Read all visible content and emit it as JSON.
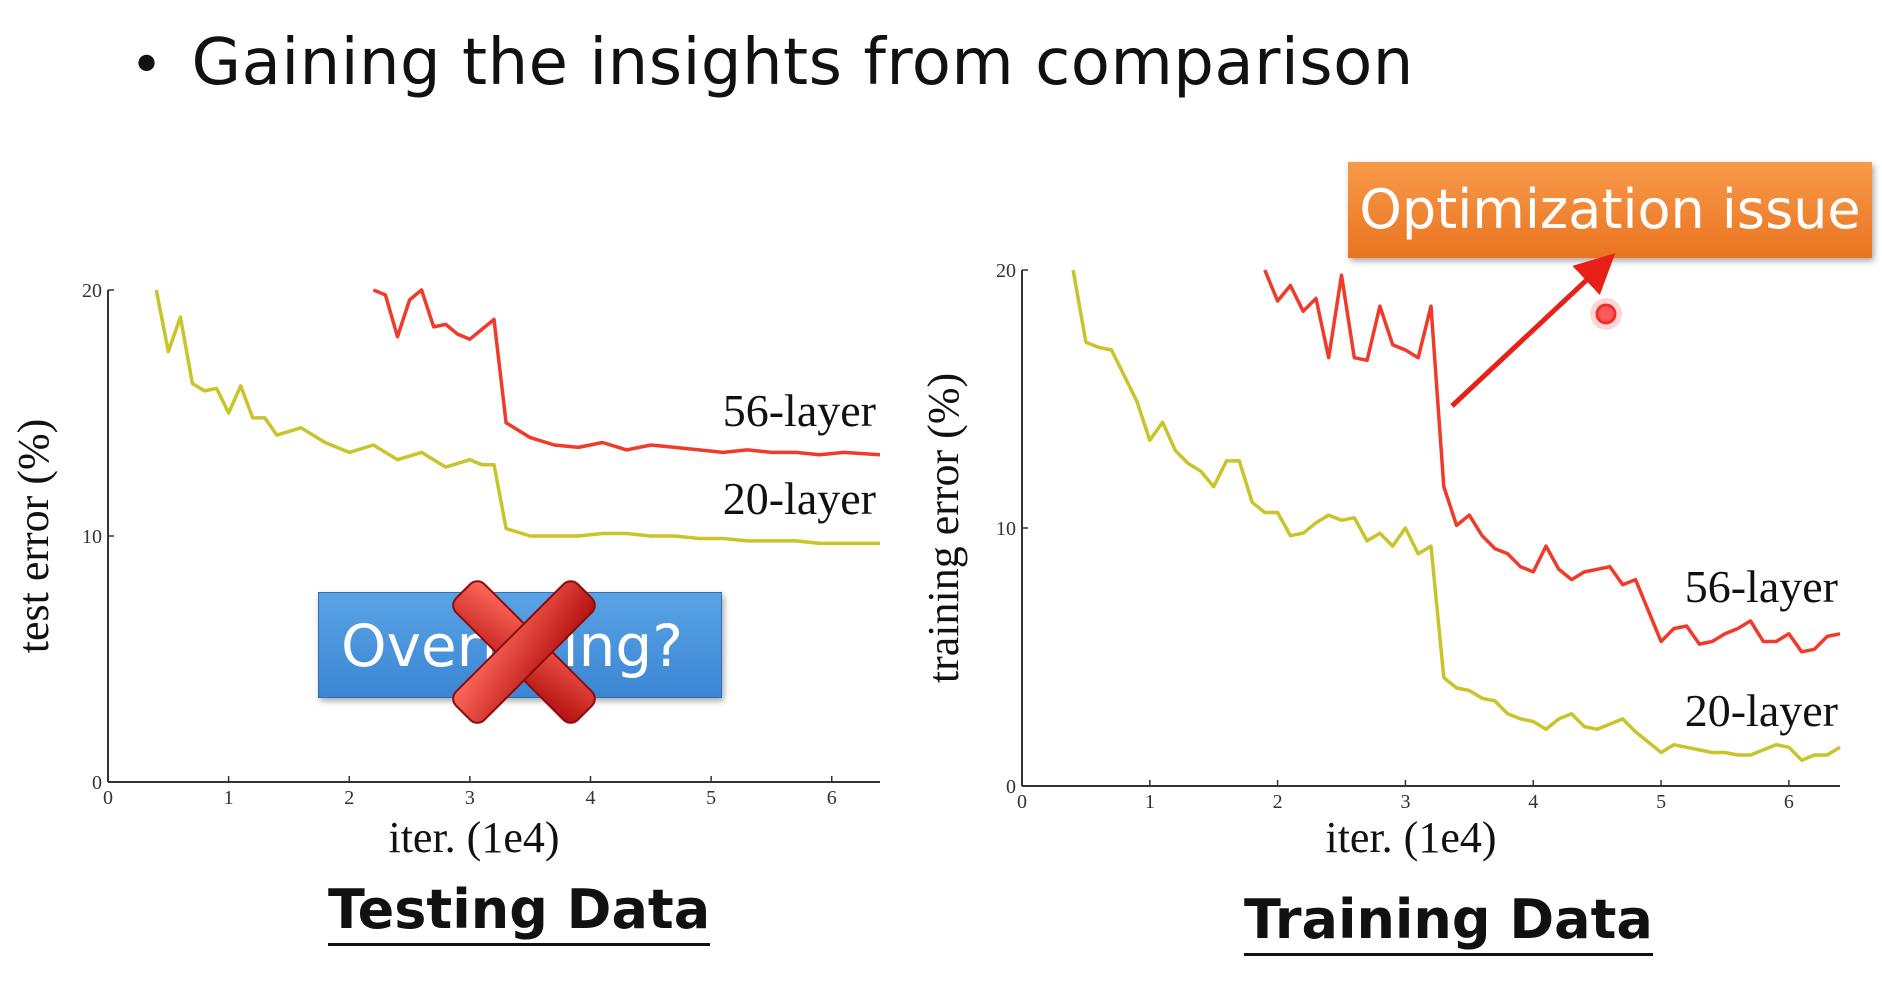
{
  "slide": {
    "bullet": "•",
    "title": "Gaining the insights from comparison"
  },
  "annotations": {
    "overfitting": "Overfitting?",
    "optimization": "Optimization issue"
  },
  "colors": {
    "layer56": "#f03a2a",
    "layer20": "#c9c42a",
    "overfit_box": "#4a95de",
    "cross": "#d91b1b",
    "opt_box": "#f08a34",
    "arrow": "#e8201a"
  },
  "chart_data": [
    {
      "type": "line",
      "caption": "Testing Data",
      "xlabel": "iter. (1e4)",
      "ylabel": "test error (%)",
      "xlim": [
        0,
        6.4
      ],
      "ylim": [
        0,
        20
      ],
      "xticks": [
        0,
        1,
        2,
        3,
        4,
        5,
        6
      ],
      "yticks": [
        0,
        10,
        20
      ],
      "series": [
        {
          "name": "56-layer",
          "color": "#f03a2a",
          "x": [
            2.2,
            2.3,
            2.4,
            2.5,
            2.6,
            2.7,
            2.8,
            2.9,
            3.0,
            3.1,
            3.2,
            3.3,
            3.5,
            3.7,
            3.9,
            4.1,
            4.3,
            4.5,
            4.7,
            4.9,
            5.1,
            5.3,
            5.5,
            5.7,
            5.9,
            6.1,
            6.4
          ],
          "values": [
            20.0,
            19.8,
            18.1,
            19.6,
            20.0,
            18.5,
            18.6,
            18.2,
            18.0,
            18.4,
            18.8,
            14.6,
            14.0,
            13.7,
            13.6,
            13.8,
            13.5,
            13.7,
            13.6,
            13.5,
            13.4,
            13.5,
            13.4,
            13.4,
            13.3,
            13.4,
            13.3
          ]
        },
        {
          "name": "20-layer",
          "color": "#c9c42a",
          "x": [
            0.4,
            0.5,
            0.6,
            0.7,
            0.8,
            0.9,
            1.0,
            1.1,
            1.2,
            1.3,
            1.4,
            1.6,
            1.8,
            2.0,
            2.2,
            2.4,
            2.6,
            2.8,
            3.0,
            3.1,
            3.2,
            3.3,
            3.5,
            3.7,
            3.9,
            4.1,
            4.3,
            4.5,
            4.7,
            4.9,
            5.1,
            5.3,
            5.5,
            5.7,
            5.9,
            6.1,
            6.4
          ],
          "values": [
            20.0,
            17.5,
            18.9,
            16.2,
            15.9,
            16.0,
            15.0,
            16.1,
            14.8,
            14.8,
            14.1,
            14.4,
            13.8,
            13.4,
            13.7,
            13.1,
            13.4,
            12.8,
            13.1,
            12.9,
            12.9,
            10.3,
            10.0,
            10.0,
            10.0,
            10.1,
            10.1,
            10.0,
            10.0,
            9.9,
            9.9,
            9.8,
            9.8,
            9.8,
            9.7,
            9.7,
            9.7
          ]
        }
      ]
    },
    {
      "type": "line",
      "caption": "Training Data",
      "xlabel": "iter. (1e4)",
      "ylabel": "training error (%)",
      "xlim": [
        0,
        6.4
      ],
      "ylim": [
        0,
        20
      ],
      "xticks": [
        0,
        1,
        2,
        3,
        4,
        5,
        6
      ],
      "yticks": [
        0,
        10,
        20
      ],
      "series": [
        {
          "name": "56-layer",
          "color": "#f03a2a",
          "x": [
            1.9,
            2.0,
            2.1,
            2.2,
            2.3,
            2.4,
            2.5,
            2.6,
            2.7,
            2.8,
            2.9,
            3.0,
            3.1,
            3.2,
            3.3,
            3.4,
            3.5,
            3.6,
            3.7,
            3.8,
            3.9,
            4.0,
            4.1,
            4.2,
            4.3,
            4.4,
            4.5,
            4.6,
            4.7,
            4.8,
            4.9,
            5.0,
            5.1,
            5.2,
            5.3,
            5.4,
            5.5,
            5.6,
            5.7,
            5.8,
            5.9,
            6.0,
            6.1,
            6.2,
            6.3,
            6.4
          ],
          "values": [
            20.0,
            18.8,
            19.4,
            18.4,
            18.9,
            16.6,
            19.8,
            16.6,
            16.5,
            18.6,
            17.1,
            16.9,
            16.6,
            18.6,
            11.6,
            10.1,
            10.5,
            9.7,
            9.2,
            9.0,
            8.5,
            8.3,
            9.3,
            8.4,
            8.0,
            8.3,
            8.4,
            8.5,
            7.8,
            8.0,
            6.8,
            5.6,
            6.1,
            6.2,
            5.5,
            5.6,
            5.9,
            6.1,
            6.4,
            5.6,
            5.6,
            5.9,
            5.2,
            5.3,
            5.8,
            5.9
          ]
        },
        {
          "name": "20-layer",
          "color": "#c9c42a",
          "x": [
            0.4,
            0.5,
            0.6,
            0.7,
            0.8,
            0.9,
            1.0,
            1.1,
            1.2,
            1.3,
            1.4,
            1.5,
            1.6,
            1.7,
            1.8,
            1.9,
            2.0,
            2.1,
            2.2,
            2.3,
            2.4,
            2.5,
            2.6,
            2.7,
            2.8,
            2.9,
            3.0,
            3.1,
            3.2,
            3.3,
            3.4,
            3.5,
            3.6,
            3.7,
            3.8,
            3.9,
            4.0,
            4.1,
            4.2,
            4.3,
            4.4,
            4.5,
            4.6,
            4.7,
            4.8,
            4.9,
            5.0,
            5.1,
            5.2,
            5.3,
            5.4,
            5.5,
            5.6,
            5.7,
            5.8,
            5.9,
            6.0,
            6.1,
            6.2,
            6.3,
            6.4
          ],
          "values": [
            20.0,
            17.2,
            17.0,
            16.9,
            15.9,
            14.9,
            13.4,
            14.1,
            13.0,
            12.5,
            12.2,
            11.6,
            12.6,
            12.6,
            11.0,
            10.6,
            10.6,
            9.7,
            9.8,
            10.2,
            10.5,
            10.3,
            10.4,
            9.5,
            9.8,
            9.3,
            10.0,
            9.0,
            9.3,
            4.2,
            3.8,
            3.7,
            3.4,
            3.3,
            2.8,
            2.6,
            2.5,
            2.2,
            2.6,
            2.8,
            2.3,
            2.2,
            2.4,
            2.6,
            2.1,
            1.7,
            1.3,
            1.6,
            1.5,
            1.4,
            1.3,
            1.3,
            1.2,
            1.2,
            1.4,
            1.6,
            1.5,
            1.0,
            1.2,
            1.2,
            1.5
          ]
        }
      ]
    }
  ]
}
